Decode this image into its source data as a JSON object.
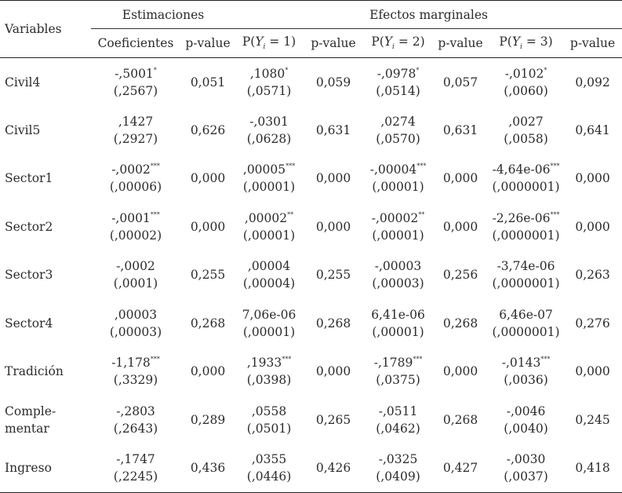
{
  "header": {
    "variables": "Variables",
    "estimaciones": "Estimaciones",
    "efectos": "Efectos marginales",
    "cols": [
      {
        "pre": "Coeficientes"
      },
      {
        "pre": "p-value"
      },
      {
        "pre": "P(",
        "it": "Y",
        "sub": "i",
        "post": " = 1)"
      },
      {
        "pre": "p-value"
      },
      {
        "pre": "P(",
        "it": "Y",
        "sub": "i",
        "post": " = 2)"
      },
      {
        "pre": "p-value"
      },
      {
        "pre": "P(",
        "it": "Y",
        "sub": "i",
        "post": " = 3)"
      },
      {
        "pre": "p-value"
      }
    ]
  },
  "rows": [
    {
      "label": [
        "Civil4"
      ],
      "cells": [
        [
          "-,5001",
          "*",
          "(,2567)"
        ],
        [
          "0,051"
        ],
        [
          ",1080",
          "*",
          "(,0571)"
        ],
        [
          "0,059"
        ],
        [
          "-,0978",
          "*",
          "(,0514)"
        ],
        [
          "0,057"
        ],
        [
          "-,0102",
          "*",
          "(,0060)"
        ],
        [
          "0,092"
        ]
      ]
    },
    {
      "label": [
        "Civil5"
      ],
      "cells": [
        [
          ",1427",
          "",
          "(,2927)"
        ],
        [
          "0,626"
        ],
        [
          "-,0301",
          "",
          "(,0628)"
        ],
        [
          "0,631"
        ],
        [
          ",0274",
          "",
          "(,0570)"
        ],
        [
          "0,631"
        ],
        [
          ",0027",
          "",
          "(,0058)"
        ],
        [
          "0,641"
        ]
      ]
    },
    {
      "label": [
        "Sector1"
      ],
      "cells": [
        [
          "-,0002",
          "***",
          "(,00006)"
        ],
        [
          "0,000"
        ],
        [
          ",00005",
          "***",
          "(,00001)"
        ],
        [
          "0,000"
        ],
        [
          "-,00004",
          "***",
          "(,00001)"
        ],
        [
          "0,000"
        ],
        [
          "-4,64e-06",
          "***",
          "(,0000001)"
        ],
        [
          "0,000"
        ]
      ]
    },
    {
      "label": [
        "Sector2"
      ],
      "cells": [
        [
          "-,0001",
          "***",
          "(,00002)"
        ],
        [
          "0,000"
        ],
        [
          ",00002",
          "**",
          "(,00001)"
        ],
        [
          "0,000"
        ],
        [
          "-,00002",
          "**",
          "(,00001)"
        ],
        [
          "0,000"
        ],
        [
          "-2,26e-06",
          "***",
          "(,0000001)"
        ],
        [
          "0,000"
        ]
      ]
    },
    {
      "label": [
        "Sector3"
      ],
      "cells": [
        [
          "-,0002",
          "",
          "(,0001)"
        ],
        [
          "0,255"
        ],
        [
          ",00004",
          "",
          "(,00004)"
        ],
        [
          "0,255"
        ],
        [
          "-,00003",
          "",
          "(,00003)"
        ],
        [
          "0,256"
        ],
        [
          "-3,74e-06",
          "",
          "(,0000001)"
        ],
        [
          "0,263"
        ]
      ]
    },
    {
      "label": [
        "Sector4"
      ],
      "cells": [
        [
          ",00003",
          "",
          "(,00003)"
        ],
        [
          "0,268"
        ],
        [
          "7,06e-06",
          "",
          "(,00001)"
        ],
        [
          "0,268"
        ],
        [
          "6,41e-06",
          "",
          "(,00001)"
        ],
        [
          "0,268"
        ],
        [
          "6,46e-07",
          "",
          "(,0000001)"
        ],
        [
          "0,276"
        ]
      ]
    },
    {
      "label": [
        "Tradición"
      ],
      "cells": [
        [
          "-1,178",
          "***",
          "(,3329)"
        ],
        [
          "0,000"
        ],
        [
          ",1933",
          "***",
          "(,0398)"
        ],
        [
          "0,000"
        ],
        [
          "-,1789",
          "***",
          "(,0375)"
        ],
        [
          "0,000"
        ],
        [
          "-,0143",
          "***",
          "(,0036)"
        ],
        [
          "0,000"
        ]
      ]
    },
    {
      "label": [
        "Comple-",
        "mentar"
      ],
      "cells": [
        [
          "-,2803",
          "",
          "(,2643)"
        ],
        [
          "0,289"
        ],
        [
          ",0558",
          "",
          "(,0501)"
        ],
        [
          "0,265"
        ],
        [
          "-,0511",
          "",
          "(,0462)"
        ],
        [
          "0,268"
        ],
        [
          "-,0046",
          "",
          "(,0040)"
        ],
        [
          "0,245"
        ]
      ]
    },
    {
      "label": [
        "Ingreso"
      ],
      "cells": [
        [
          "-,1747",
          "",
          "(,2245)"
        ],
        [
          "0,436"
        ],
        [
          ",0355",
          "",
          "(,0446)"
        ],
        [
          "0,426"
        ],
        [
          "-,0325",
          "",
          "(,0409)"
        ],
        [
          "0,427"
        ],
        [
          "-,0030",
          "",
          "(,0037)"
        ],
        [
          "0,418"
        ]
      ]
    }
  ]
}
